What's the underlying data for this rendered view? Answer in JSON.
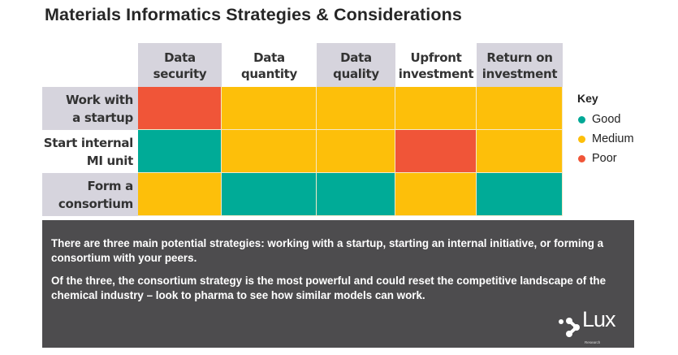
{
  "title": "Materials Informatics Strategies & Considerations",
  "columns": [
    {
      "line1": "Data",
      "line2": "security"
    },
    {
      "line1": "Data",
      "line2": "quantity"
    },
    {
      "line1": "Data",
      "line2": "quality"
    },
    {
      "line1": "Upfront",
      "line2": "investment"
    },
    {
      "line1": "Return on",
      "line2": "investment"
    }
  ],
  "rows": [
    {
      "line1": "Work with",
      "line2": "a startup",
      "ratings": [
        "Poor",
        "Medium",
        "Medium",
        "Medium",
        "Medium"
      ]
    },
    {
      "line1": "Start internal",
      "line2": "MI unit",
      "ratings": [
        "Good",
        "Medium",
        "Medium",
        "Poor",
        "Medium"
      ]
    },
    {
      "line1": "Form a",
      "line2": "consortium",
      "ratings": [
        "Medium",
        "Good",
        "Good",
        "Medium",
        "Good"
      ]
    }
  ],
  "key": {
    "title": "Key",
    "items": [
      {
        "label": "Good",
        "color": "#00a896"
      },
      {
        "label": "Medium",
        "color": "#fdbf0a"
      },
      {
        "label": "Poor",
        "color": "#f05538"
      }
    ]
  },
  "colors": {
    "Good": "#00ab97",
    "Medium": "#fdbf0a",
    "Poor": "#f05538",
    "header_gray": "#d6d4dd",
    "panel": "#4d4c4e"
  },
  "panel": {
    "paragraph1": "There are three main potential strategies: working with a startup, starting an internal initiative, or forming a consortium with your peers.",
    "paragraph2": "Of the three, the consortium strategy is the most powerful and could reset the competitive landscape of the chemical industry – look to pharma to see how similar models can work."
  },
  "logo": {
    "name": "Lux",
    "subtitle": "Research"
  }
}
